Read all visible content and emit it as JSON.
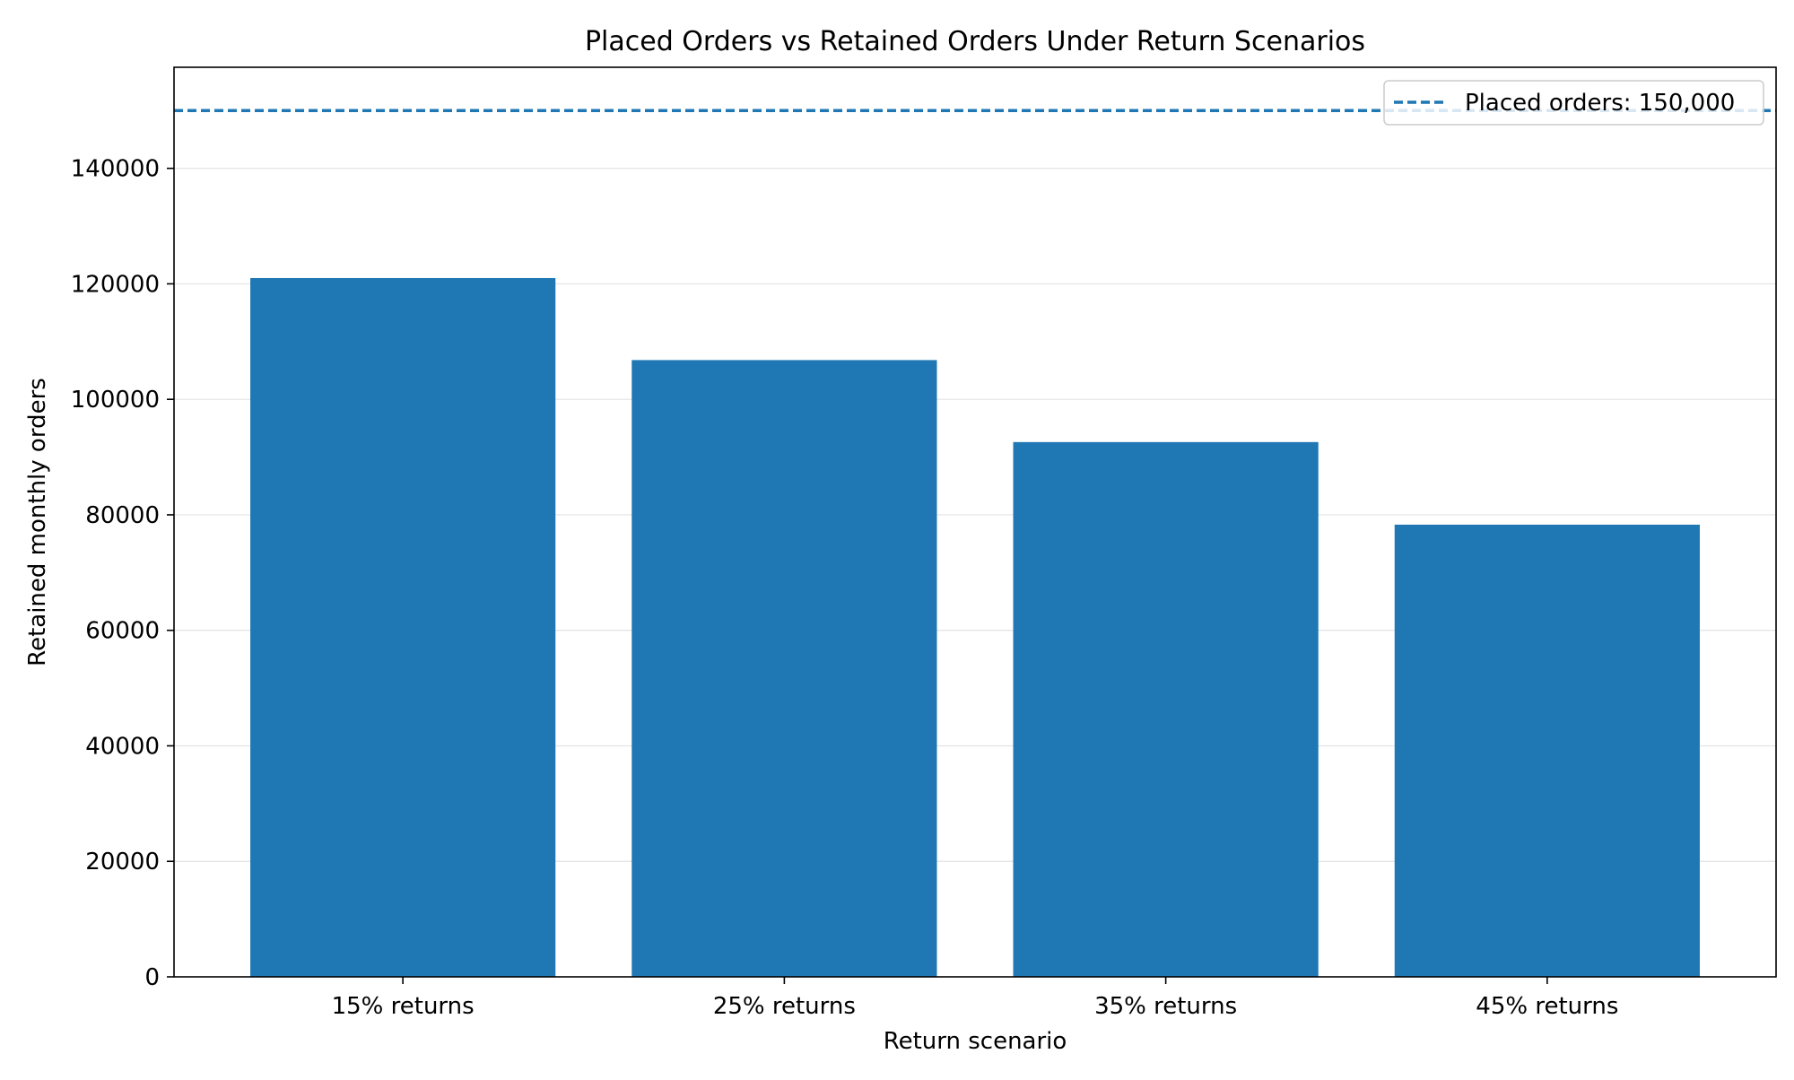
{
  "chart_data": {
    "type": "bar",
    "title": "Placed Orders vs Retained Orders Under Return Scenarios",
    "xlabel": "Return scenario",
    "ylabel": "Retained monthly orders",
    "categories": [
      "15% returns",
      "25% returns",
      "35% returns",
      "45% returns"
    ],
    "values": [
      121000,
      106800,
      92600,
      78300
    ],
    "ylim": [
      0,
      157500
    ],
    "yticks": [
      0,
      20000,
      40000,
      60000,
      80000,
      100000,
      120000,
      140000
    ],
    "grid": "horizontal",
    "bar_color": "#1f77b4",
    "reference_line": {
      "value": 150000,
      "label": "Placed orders: 150,000",
      "style": "dashed",
      "color": "#1f77b4"
    },
    "legend": {
      "placement": "top-right",
      "entries": [
        "Placed orders: 150,000"
      ]
    }
  }
}
